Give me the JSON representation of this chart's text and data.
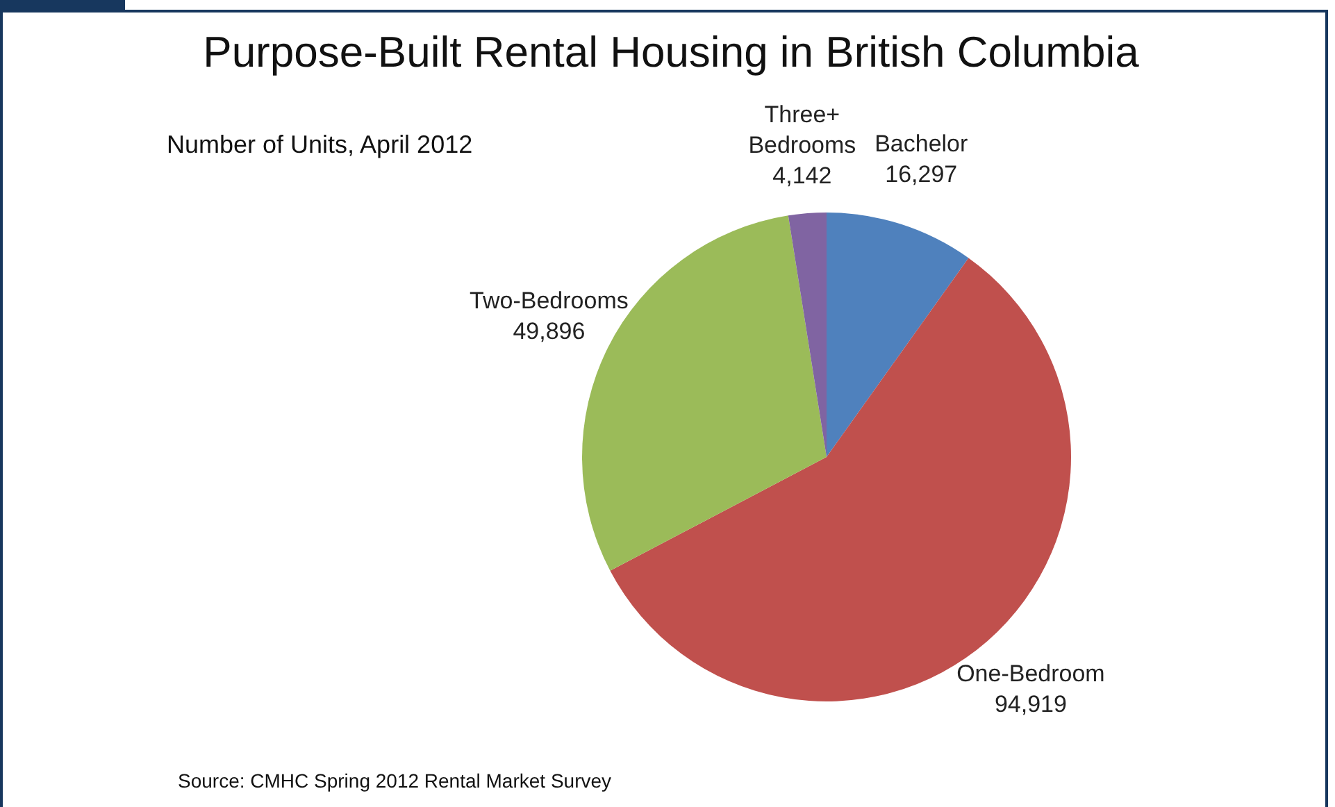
{
  "chart_data": {
    "type": "pie",
    "title": "Purpose-Built Rental Housing in British Columbia",
    "subtitle": "Number of Units, April 2012",
    "categories": [
      "Bachelor",
      "One-Bedroom",
      "Two-Bedrooms",
      "Three+ Bedrooms"
    ],
    "values": [
      16297,
      94919,
      49896,
      4142
    ],
    "colors": [
      "#4f81bd",
      "#c0504d",
      "#9bbb59",
      "#8064a2"
    ],
    "value_labels": [
      "16,297",
      "94,919",
      "49,896",
      "4,142"
    ],
    "annotations": [
      "Source: CMHC Spring 2012 Rental Market Survey"
    ]
  }
}
